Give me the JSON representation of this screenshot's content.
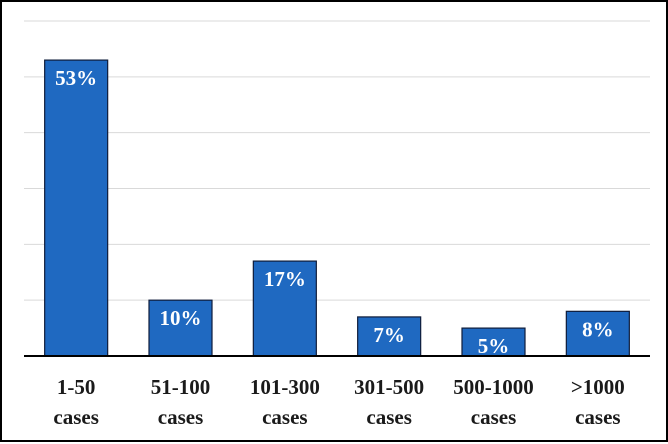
{
  "chart_data": {
    "type": "bar",
    "categories": [
      [
        "1-50",
        "cases"
      ],
      [
        "51-100",
        "cases"
      ],
      [
        "101-300",
        "cases"
      ],
      [
        "301-500",
        "cases"
      ],
      [
        "500-1000",
        "cases"
      ],
      [
        ">1000",
        "cases"
      ]
    ],
    "values": [
      53,
      10,
      17,
      7,
      5,
      8
    ],
    "data_labels": [
      "53%",
      "10%",
      "17%",
      "7%",
      "5%",
      "8%"
    ],
    "title": "",
    "xlabel": "",
    "ylabel": "",
    "ylim": [
      0,
      60
    ],
    "y_gridlines": [
      0,
      10,
      20,
      30,
      40,
      50,
      60
    ],
    "grid": true,
    "legend": "none",
    "colors": {
      "bar_fill": "#1f69c1",
      "bar_stroke": "#0f1c3a",
      "grid": "#d9d9d9",
      "axis": "#000000",
      "frame": "#000000"
    }
  }
}
